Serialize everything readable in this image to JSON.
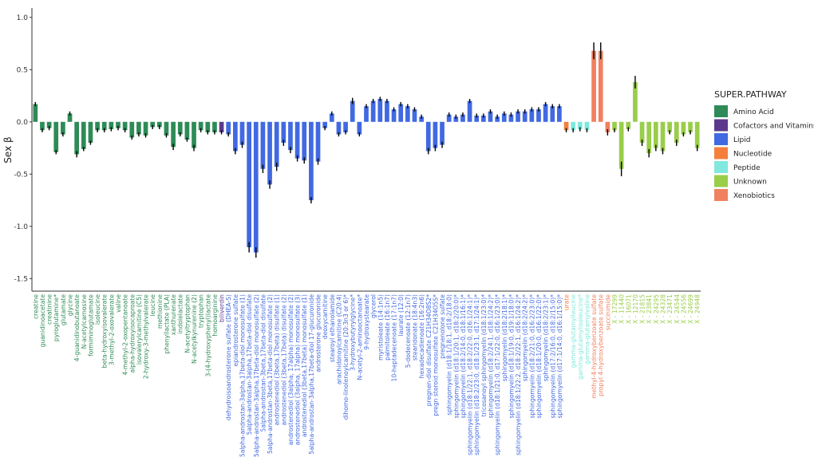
{
  "chart_data": {
    "type": "bar",
    "ylabel": "Sex β",
    "ylim": [
      -1.62,
      1.09
    ],
    "yticks": [
      {
        "value": 1.0,
        "label": "1.0"
      },
      {
        "value": 0.5,
        "label": "0.5"
      },
      {
        "value": 0.0,
        "label": "0.0"
      },
      {
        "value": -0.5,
        "label": "-0.5"
      },
      {
        "value": -1.0,
        "label": "-1.0"
      },
      {
        "value": -1.5,
        "label": "-1.5"
      }
    ],
    "legend_title": "SUPER.PATHWAY",
    "series": [
      {
        "name": "Amino Acid",
        "color": "#2e8b57",
        "categories": [
          "creatine",
          "guanidinoacetate",
          "creatinine",
          "pyroglutamine*",
          "glutamate",
          "glycine",
          "4-guanidinobutanoate",
          "N-acetylcarnosine",
          "formiminoglutamate",
          "isoleucine",
          "beta-hydroxyisovalerate",
          "3-methyl-2-oxovalerate",
          "valine",
          "4-methyl-2-oxopentanoate",
          "alpha-hydroxyisocaproate",
          "isovalerylcarnitine (C5)",
          "2-hydroxy-3-methylvalerate",
          "leucine",
          "methionine",
          "phenyllactate (PLA)",
          "xanthurenate",
          "indolelactate",
          "N-acetyltryptophan",
          "N-acetylkynurenine (2)",
          "tryptophan",
          "3-(4-hydroxyphenyl)lactate",
          "homoarginine"
        ],
        "values": [
          0.17,
          -0.08,
          -0.06,
          -0.29,
          -0.12,
          0.08,
          -0.31,
          -0.26,
          -0.2,
          -0.08,
          -0.08,
          -0.07,
          -0.06,
          -0.08,
          -0.15,
          -0.12,
          -0.13,
          -0.05,
          -0.05,
          -0.13,
          -0.24,
          -0.12,
          -0.17,
          -0.25,
          -0.08,
          -0.1,
          -0.1
        ],
        "errors": [
          0.02,
          0.02,
          0.02,
          0.02,
          0.02,
          0.02,
          0.03,
          0.02,
          0.02,
          0.02,
          0.02,
          0.02,
          0.02,
          0.02,
          0.02,
          0.02,
          0.02,
          0.02,
          0.02,
          0.02,
          0.03,
          0.02,
          0.02,
          0.03,
          0.02,
          0.02,
          0.02
        ]
      },
      {
        "name": "Cofactors and Vitamins",
        "color": "#5b3a8e",
        "categories": [
          "biliverdin"
        ],
        "values": [
          -0.1
        ],
        "errors": [
          0.02
        ]
      },
      {
        "name": "Lipid",
        "color": "#4169e1",
        "categories": [
          "dehydroisoandrosterone sulfate (DHEA-S)",
          "epiandrosterone sulfate",
          "5alpha-androstan-3alpha,17beta-diol monosulfate (1)",
          "5alpha-androstan-3alpha,17beta-diol disulfate",
          "5alpha-androstan-3alpha,17beta-diol monosulfate (2)",
          "5alpha-androstan-3beta,17beta-diol disulfate",
          "5alpha-androstan-3beta,17beta-diol monosulfate (2)",
          "androstenediol (3beta,17beta) disulfate (1)",
          "androstenediol (3beta,17beta) disulfate (2)",
          "androstenediol (3alpha, 17alpha) monosulfate (2)",
          "androstenediol (3alpha, 17alpha) monosulfate (3)",
          "androstenediol (3beta,17beta) monosulfate (1)",
          "5alpha-androstan-3alpha,17beta-diol 17-glucuronide",
          "androsterone glucuronide",
          "deoxycarnitine",
          "stearoyl ethanolamide",
          "arachidonoylcarnitine (C20:4)",
          "dihomo-linolenoylcarnitine (20:3n3 or 6)*",
          "3-hydroxybutyrylglycine*",
          "N-acetyl-2-aminooctanoate*",
          "9-hydroxystearate",
          "glycerol",
          "myristoleate (14:1n5)",
          "palmitoleate (16:1n7)",
          "10-heptadecenoate (17:1n7)",
          "laurate (12:0)",
          "5-dodecenoate (12:1n7)",
          "stearidonate (18:4n3)",
          "hexadecadienoate (16:2n6)",
          "pregnen-diol disulfate C21H34O8S2*",
          "pregn steroid monosulfate C21H34O5S*",
          "pregnenolone sulfate",
          "sphingomyelin (d18:1/18:1, d18:2/18:0)",
          "sphingomyelin (d18:1/20:1, d18:2/20:0)*",
          "sphingomyelin (d18:2/14:0, d18:1/16:1)*",
          "sphingomyelin (d18:1/22:1, d18:2/22:0, d16:1/24:1)*",
          "sphingomyelin (d18:2/23:0, d18:1/23:1, d17:1/24:1)*",
          "tricosanoyl sphingomyelin (d18:1/23:0)*",
          "sphingomyelin (d18:2/24:1, d18:1/24:2)*",
          "sphingomyelin (d18:1/21:0, d17:1/22:0, d16:1/23:0)*",
          "sphingomyelin (d18:2/18:1)*",
          "sphingomyelin (d18:1/19:0, d19:1/18:0)*",
          "sphingomyelin (d18:1/22:2, d18:2/22:1, d16:1/24:2)*",
          "sphingomyelin (d18:2/24:2)*",
          "sphingomyelin (d18:2/21:0, d16:2/23:0)*",
          "sphingomyelin (d18:1/20:0, d16:1/22:0)*",
          "sphingomyelin (d18:2/23:1)*",
          "sphingomyelin (d17:2/16:0, d18:2/15:0)*",
          "sphingomyelin (d17:1/14:0, d16:1/15:0)*"
        ],
        "values": [
          -0.12,
          -0.28,
          -0.22,
          -1.2,
          -1.25,
          -0.45,
          -0.6,
          -0.43,
          -0.2,
          -0.27,
          -0.35,
          -0.37,
          -0.75,
          -0.38,
          -0.06,
          0.08,
          -0.12,
          -0.1,
          0.2,
          -0.12,
          0.15,
          0.2,
          0.22,
          0.2,
          0.12,
          0.17,
          0.15,
          0.12,
          0.05,
          -0.28,
          -0.25,
          -0.22,
          0.07,
          0.05,
          0.07,
          0.2,
          0.06,
          0.06,
          0.1,
          0.05,
          0.08,
          0.07,
          0.1,
          0.1,
          0.12,
          0.12,
          0.17,
          0.15,
          0.15
        ],
        "errors": [
          0.02,
          0.03,
          0.03,
          0.05,
          0.05,
          0.04,
          0.04,
          0.04,
          0.03,
          0.03,
          0.03,
          0.03,
          0.03,
          0.03,
          0.02,
          0.02,
          0.02,
          0.02,
          0.03,
          0.02,
          0.02,
          0.02,
          0.02,
          0.02,
          0.02,
          0.02,
          0.02,
          0.02,
          0.02,
          0.03,
          0.03,
          0.03,
          0.02,
          0.02,
          0.02,
          0.02,
          0.02,
          0.02,
          0.02,
          0.02,
          0.02,
          0.02,
          0.02,
          0.02,
          0.02,
          0.02,
          0.02,
          0.02,
          0.02
        ]
      },
      {
        "name": "Nucleotide",
        "color": "#f47f3d",
        "categories": [
          "urate"
        ],
        "values": [
          -0.08
        ],
        "errors": [
          0.02
        ]
      },
      {
        "name": "Peptide",
        "color": "#80e8dc",
        "categories": [
          "gamma-glutamylleucine",
          "gamma-glutamylisoleucine*",
          "gamma-glutamylvaline"
        ],
        "values": [
          -0.08,
          -0.07,
          -0.08
        ],
        "errors": [
          0.02,
          0.02,
          0.02
        ]
      },
      {
        "name": "Xenobiotics",
        "color": "#f08060",
        "categories": [
          "methyl-4-hydroxybenzoate sulfate",
          "propyl 4-hydroxybenzoate sulfate",
          "succinimide"
        ],
        "values": [
          0.68,
          0.68,
          -0.1
        ],
        "errors": [
          0.08,
          0.08,
          0.03
        ]
      },
      {
        "name": "Unknown",
        "color": "#9acd4a",
        "categories": [
          "X - 17299",
          "X - 11440",
          "X - 16071",
          "X - 12170",
          "X - 21815",
          "X - 23841",
          "X - 24295",
          "X - 24328",
          "X - 23471",
          "X - 24544",
          "X - 24556",
          "X - 24699",
          "X - 24948"
        ],
        "values": [
          -0.08,
          -0.45,
          -0.07,
          0.38,
          -0.2,
          -0.3,
          -0.25,
          -0.28,
          -0.1,
          -0.2,
          -0.12,
          -0.1,
          -0.25
        ],
        "errors": [
          0.02,
          0.07,
          0.02,
          0.06,
          0.03,
          0.04,
          0.03,
          0.03,
          0.02,
          0.03,
          0.02,
          0.02,
          0.03
        ]
      }
    ]
  }
}
